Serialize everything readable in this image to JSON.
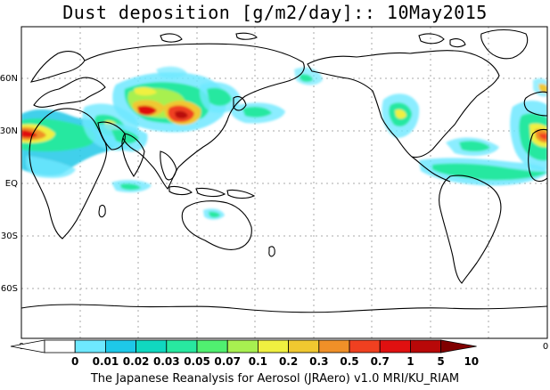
{
  "title": "Dust deposition [g/m2/day]:: 10May2015",
  "footer": "The Japanese Reanalysis for Aerosol (JRAero) v1.0 MRI/KU_RIAM",
  "map": {
    "lat_labels": [
      "60N",
      "30N",
      "EQ",
      "30S",
      "60S"
    ],
    "lon_labels": [
      "0",
      "0"
    ]
  },
  "colorbar": {
    "labels": [
      "0",
      "0.01",
      "0.02",
      "0.03",
      "0.05",
      "0.07",
      "0.1",
      "0.2",
      "0.3",
      "0.5",
      "0.7",
      "1",
      "5",
      "10"
    ],
    "colors": [
      "#ffffff",
      "#6ee8ff",
      "#1ec8e8",
      "#10d8c0",
      "#28e8a0",
      "#50f070",
      "#a8f050",
      "#f0f040",
      "#f0c830",
      "#f09028",
      "#f04020",
      "#e01010",
      "#b80808",
      "#800000"
    ]
  }
}
